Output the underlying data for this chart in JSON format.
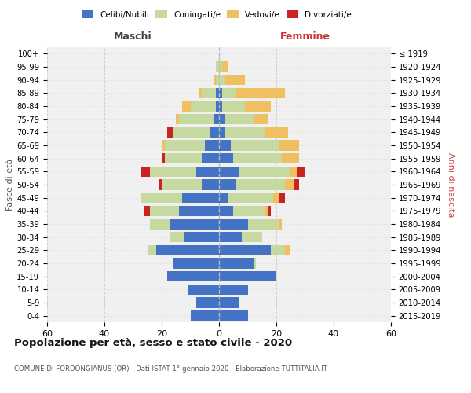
{
  "age_groups_bottom_to_top": [
    "0-4",
    "5-9",
    "10-14",
    "15-19",
    "20-24",
    "25-29",
    "30-34",
    "35-39",
    "40-44",
    "45-49",
    "50-54",
    "55-59",
    "60-64",
    "65-69",
    "70-74",
    "75-79",
    "80-84",
    "85-89",
    "90-94",
    "95-99",
    "100+"
  ],
  "birth_years_bottom_to_top": [
    "2015-2019",
    "2010-2014",
    "2005-2009",
    "2000-2004",
    "1995-1999",
    "1990-1994",
    "1985-1989",
    "1980-1984",
    "1975-1979",
    "1970-1974",
    "1965-1969",
    "1960-1964",
    "1955-1959",
    "1950-1954",
    "1945-1949",
    "1940-1944",
    "1935-1939",
    "1930-1934",
    "1925-1929",
    "1920-1924",
    "≤ 1919"
  ],
  "maschi": {
    "celibi": [
      10,
      8,
      11,
      18,
      16,
      22,
      12,
      17,
      14,
      13,
      6,
      8,
      6,
      5,
      3,
      2,
      1,
      1,
      0,
      0,
      0
    ],
    "coniugati": [
      0,
      0,
      0,
      0,
      0,
      3,
      5,
      7,
      10,
      14,
      14,
      16,
      13,
      14,
      13,
      12,
      9,
      5,
      1,
      1,
      0
    ],
    "vedovi": [
      0,
      0,
      0,
      0,
      0,
      0,
      0,
      0,
      0,
      0,
      0,
      0,
      0,
      1,
      0,
      1,
      3,
      1,
      1,
      0,
      0
    ],
    "divorziati": [
      0,
      0,
      0,
      0,
      0,
      0,
      0,
      0,
      2,
      0,
      1,
      3,
      1,
      0,
      2,
      0,
      0,
      0,
      0,
      0,
      0
    ]
  },
  "femmine": {
    "nubili": [
      10,
      7,
      10,
      20,
      12,
      18,
      8,
      10,
      5,
      3,
      6,
      7,
      5,
      4,
      2,
      2,
      1,
      1,
      0,
      0,
      0
    ],
    "coniugate": [
      0,
      0,
      0,
      0,
      1,
      5,
      7,
      11,
      11,
      16,
      17,
      18,
      17,
      17,
      14,
      10,
      8,
      5,
      2,
      1,
      0
    ],
    "vedove": [
      0,
      0,
      0,
      0,
      0,
      2,
      0,
      1,
      1,
      2,
      3,
      2,
      6,
      7,
      8,
      5,
      9,
      17,
      7,
      2,
      0
    ],
    "divorziate": [
      0,
      0,
      0,
      0,
      0,
      0,
      0,
      0,
      1,
      2,
      2,
      3,
      0,
      0,
      0,
      0,
      0,
      0,
      0,
      0,
      0
    ]
  },
  "colors": {
    "celibi": "#4472c4",
    "coniugati": "#c5d9a0",
    "vedovi": "#f0c060",
    "divorziati": "#cc2222"
  },
  "xlim": 60,
  "title": "Popolazione per età, sesso e stato civile - 2020",
  "subtitle": "COMUNE DI FORDONGIANUS (OR) - Dati ISTAT 1° gennaio 2020 - Elaborazione TUTTITALIA.IT",
  "ylabel_left": "Fasce di età",
  "ylabel_right": "Anni di nascita",
  "xlabel_maschi": "Maschi",
  "xlabel_femmine": "Femmine"
}
